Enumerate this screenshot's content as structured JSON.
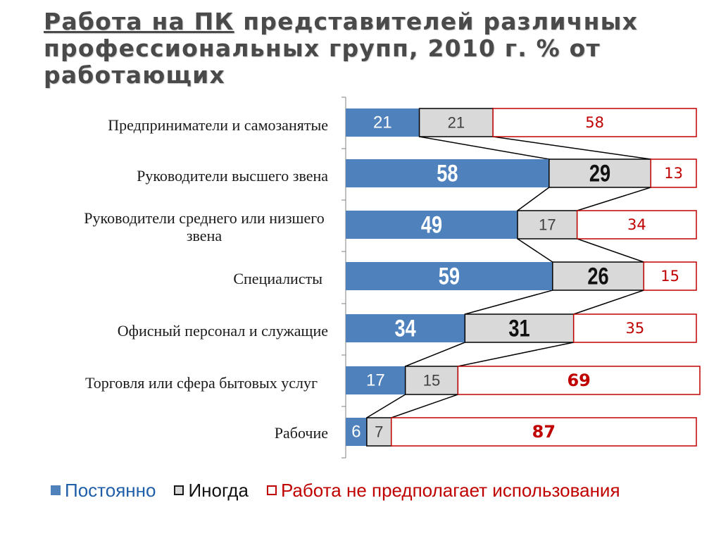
{
  "title_part1": "Работа на ПК",
  "title_part2": " представителей различных профессиональных групп,  2010 г. % от работающих",
  "chart_data": {
    "type": "bar",
    "stacked": true,
    "orientation": "horizontal",
    "categories": [
      "Предприниматели и самозанятые",
      "Руководители высшего звена",
      "Руководители  среднего или низшего звена",
      "Специалисты",
      "Офисный персонал и служащие",
      "Торговля или сфера бытовых услуг",
      "Рабочие"
    ],
    "series": [
      {
        "name": "Постоянно",
        "values": [
          21,
          58,
          49,
          59,
          34,
          17,
          6
        ],
        "color": "#4f81bd"
      },
      {
        "name": "Иногда",
        "values": [
          21,
          29,
          17,
          26,
          31,
          15,
          7
        ],
        "color": "#d9d9d9"
      },
      {
        "name": "Работа не предполагает использования",
        "values": [
          58,
          13,
          34,
          15,
          35,
          69,
          87
        ],
        "color": "#c00000"
      }
    ],
    "xlim": [
      0,
      100
    ],
    "legend": "bottom",
    "grid": false
  },
  "legend_items": [
    "Постоянно",
    "Иногда",
    "Работа не предполагает использования"
  ]
}
